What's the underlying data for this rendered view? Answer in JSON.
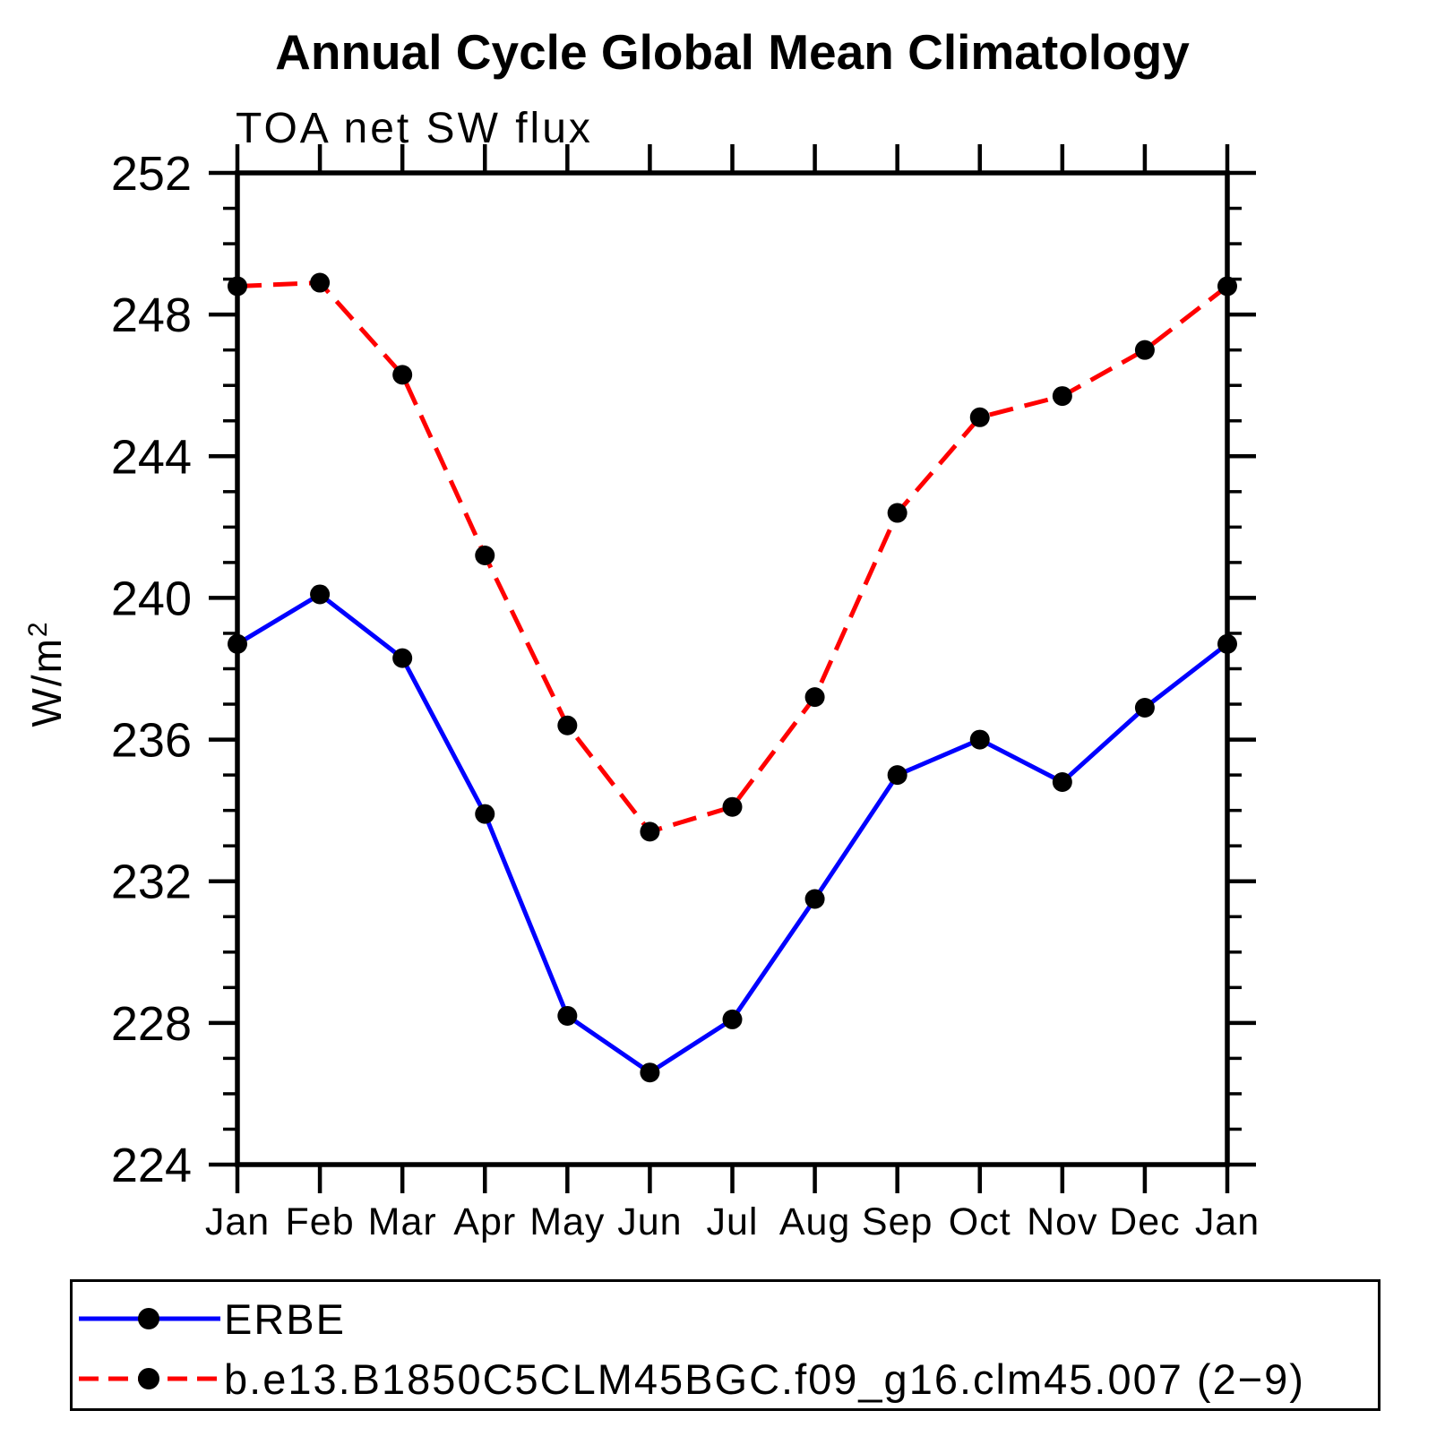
{
  "page": {
    "background": "#ffffff"
  },
  "chart_data": {
    "type": "line",
    "title": "Annual Cycle Global Mean Climatology",
    "subtitle": "TOA net SW flux",
    "ylabel_base": "W/m",
    "ylabel_exp": "2",
    "x_tick_labels": [
      "Jan",
      "Feb",
      "Mar",
      "Apr",
      "May",
      "Jun",
      "Jul",
      "Aug",
      "Sep",
      "Oct",
      "Nov",
      "Dec",
      "Jan"
    ],
    "y_tick_major": [
      224,
      228,
      232,
      236,
      240,
      244,
      248,
      252
    ],
    "y_minor_step": 1,
    "ylim": [
      224,
      252
    ],
    "grid": "off",
    "axis_color": "#000000",
    "marker_color": "#000000",
    "legend_position": "bottom-left",
    "series": [
      {
        "name": "ERBE",
        "color": "#0000ff",
        "line_style": "solid",
        "marker": "circle",
        "values": [
          238.7,
          240.1,
          238.3,
          233.9,
          228.2,
          226.6,
          228.1,
          231.5,
          235.0,
          236.0,
          234.8,
          236.9,
          238.7
        ]
      },
      {
        "name": "b.e13.B1850C5CLM45BGC.f09_g16.clm45.007 (2−9)",
        "color": "#ff0000",
        "line_style": "dashed",
        "marker": "circle",
        "values": [
          248.8,
          248.9,
          246.3,
          241.2,
          236.4,
          233.4,
          234.1,
          237.2,
          242.4,
          245.1,
          245.7,
          247.0,
          248.8
        ]
      }
    ]
  }
}
